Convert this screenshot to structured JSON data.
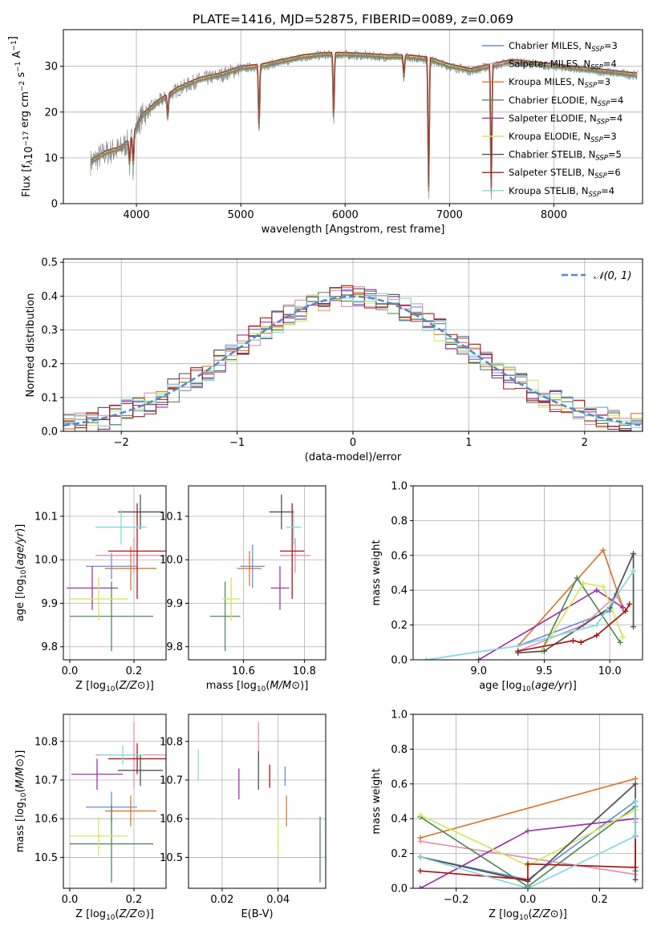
{
  "figure": {
    "title": "PLATE=1416, MJD=52875, FIBERID=0089, z=0.069"
  },
  "colors": {
    "chabrier_miles": "#6a8fd6",
    "salpeter_miles": "#e38fb5",
    "kroupa_miles": "#d9782f",
    "chabrier_elodie": "#55885b",
    "salpeter_elodie": "#9a35a8",
    "kroupa_elodie": "#d2e85a",
    "chabrier_stelib": "#505050",
    "salpeter_stelib": "#a81818",
    "kroupa_stelib": "#86d7dc",
    "data_spectrum": "#808080",
    "normal_curve": "#5588cc"
  },
  "chart_data": [
    {
      "id": "spectrum",
      "type": "line",
      "title": "PLATE=1416, MJD=52875, FIBERID=0089, z=0.069",
      "xlabel": "wavelength [Angstrom, rest frame]",
      "ylabel": "Flux [f_λ 10^-17 erg cm^-2 s^-1 A^-1]",
      "xlim": [
        3300,
        8850
      ],
      "ylim": [
        0,
        38
      ],
      "xticks": [
        4000,
        5000,
        6000,
        7000,
        8000
      ],
      "yticks": [
        0,
        10,
        20,
        30
      ],
      "legend_position": "top-right",
      "legend": [
        {
          "name": "Chabrier MILES, N",
          "sub": "SSP",
          "eq": "=3",
          "color_key": "chabrier_miles"
        },
        {
          "name": "Salpeter MILES, N",
          "sub": "SSP",
          "eq": "=4",
          "color_key": "salpeter_miles"
        },
        {
          "name": "Kroupa MILES, N",
          "sub": "SSP",
          "eq": "=3",
          "color_key": "kroupa_miles"
        },
        {
          "name": "Chabrier ELODIE, N",
          "sub": "SSP",
          "eq": "=4",
          "color_key": "chabrier_elodie"
        },
        {
          "name": "Salpeter ELODIE, N",
          "sub": "SSP",
          "eq": "=4",
          "color_key": "salpeter_elodie"
        },
        {
          "name": "Kroupa ELODIE, N",
          "sub": "SSP",
          "eq": "=3",
          "color_key": "kroupa_elodie"
        },
        {
          "name": "Chabrier STELIB, N",
          "sub": "SSP",
          "eq": "=5",
          "color_key": "chabrier_stelib"
        },
        {
          "name": "Salpeter STELIB, N",
          "sub": "SSP",
          "eq": "=6",
          "color_key": "salpeter_stelib"
        },
        {
          "name": "Kroupa STELIB, N",
          "sub": "SSP",
          "eq": "=4",
          "color_key": "kroupa_stelib"
        }
      ],
      "continuum": [
        [
          3560,
          9
        ],
        [
          3700,
          11
        ],
        [
          3850,
          12
        ],
        [
          3950,
          14
        ],
        [
          4050,
          19
        ],
        [
          4200,
          22
        ],
        [
          4400,
          25
        ],
        [
          4600,
          27
        ],
        [
          4800,
          28
        ],
        [
          5000,
          29.5
        ],
        [
          5200,
          30
        ],
        [
          5400,
          31
        ],
        [
          5600,
          32
        ],
        [
          5800,
          32.5
        ],
        [
          6000,
          32.5
        ],
        [
          6200,
          32.3
        ],
        [
          6400,
          32
        ],
        [
          6600,
          32
        ],
        [
          6800,
          31.5
        ],
        [
          7000,
          30
        ],
        [
          7200,
          29
        ],
        [
          7400,
          30
        ],
        [
          7600,
          31
        ],
        [
          7800,
          30.5
        ],
        [
          8000,
          30
        ],
        [
          8200,
          29.5
        ],
        [
          8400,
          29
        ],
        [
          8600,
          28.5
        ],
        [
          8800,
          28
        ]
      ],
      "absorption_features": [
        [
          3934,
          8
        ],
        [
          3969,
          8
        ],
        [
          4300,
          18
        ],
        [
          5175,
          15
        ],
        [
          5890,
          17
        ],
        [
          6563,
          27
        ],
        [
          6800,
          0
        ],
        [
          7400,
          0
        ]
      ]
    },
    {
      "id": "residuals",
      "type": "histogram",
      "xlabel": "(data-model)/error",
      "ylabel": "Normed distribution",
      "xlim": [
        -2.5,
        2.5
      ],
      "ylim": [
        0,
        0.51
      ],
      "xticks": [
        -2,
        -1,
        0,
        1,
        2
      ],
      "yticks": [
        0.0,
        0.1,
        0.2,
        0.3,
        0.4,
        0.5
      ],
      "legend_position": "top-right",
      "legend_label": "𝒩(0, 1)",
      "bin_width": 0.1,
      "reference": {
        "type": "normal",
        "mean": 0,
        "sigma": 1
      }
    },
    {
      "id": "age_vs_Z",
      "type": "errorbar",
      "xlabel": "Z [log10(Z/Z⊙)]",
      "ylabel": "age [log10(age/yr)]",
      "xlim": [
        -0.02,
        0.3
      ],
      "ylim": [
        9.77,
        10.17
      ],
      "xticks": [
        0.0,
        0.2
      ],
      "yticks": [
        9.8,
        9.9,
        10.0,
        10.1
      ],
      "points": [
        {
          "series": "chabrier_miles",
          "x": 0.13,
          "xerr": 0.08,
          "y": 9.985,
          "yerr": 0.03
        },
        {
          "series": "salpeter_miles",
          "x": 0.2,
          "xerr": 0.12,
          "y": 10.01,
          "yerr": 0.04
        },
        {
          "series": "kroupa_miles",
          "x": 0.19,
          "xerr": 0.08,
          "y": 9.98,
          "yerr": 0.05
        },
        {
          "series": "chabrier_elodie",
          "x": 0.13,
          "xerr": 0.13,
          "y": 9.87,
          "yerr": 0.08
        },
        {
          "series": "salpeter_elodie",
          "x": 0.07,
          "xerr": 0.08,
          "y": 9.935,
          "yerr": 0.05
        },
        {
          "series": "kroupa_elodie",
          "x": 0.09,
          "xerr": 0.09,
          "y": 9.91,
          "yerr": 0.05
        },
        {
          "series": "chabrier_stelib",
          "x": 0.22,
          "xerr": 0.07,
          "y": 10.11,
          "yerr": 0.04
        },
        {
          "series": "salpeter_stelib",
          "x": 0.21,
          "xerr": 0.09,
          "y": 10.02,
          "yerr": 0.11
        },
        {
          "series": "kroupa_stelib",
          "x": 0.16,
          "xerr": 0.08,
          "y": 10.075,
          "yerr": 0.04
        }
      ]
    },
    {
      "id": "age_vs_mass",
      "type": "errorbar",
      "xlabel": "mass [log10(M/M⊙)]",
      "ylabel": "",
      "xlim": [
        10.42,
        10.87
      ],
      "ylim": [
        9.77,
        10.17
      ],
      "xticks": [
        10.6,
        10.8
      ],
      "yticks": [
        9.8,
        9.9,
        10.0,
        10.1
      ],
      "points": [
        {
          "series": "chabrier_miles",
          "x": 10.63,
          "xerr": 0.04,
          "y": 9.985,
          "yerr": 0.05
        },
        {
          "series": "salpeter_miles",
          "x": 10.77,
          "xerr": 0.05,
          "y": 10.01,
          "yerr": 0.04
        },
        {
          "series": "kroupa_miles",
          "x": 10.62,
          "xerr": 0.04,
          "y": 9.98,
          "yerr": 0.04
        },
        {
          "series": "chabrier_elodie",
          "x": 10.54,
          "xerr": 0.05,
          "y": 9.87,
          "yerr": 0.08
        },
        {
          "series": "salpeter_elodie",
          "x": 10.72,
          "xerr": 0.03,
          "y": 9.935,
          "yerr": 0.05
        },
        {
          "series": "kroupa_elodie",
          "x": 10.56,
          "xerr": 0.03,
          "y": 9.91,
          "yerr": 0.05
        },
        {
          "series": "chabrier_stelib",
          "x": 10.725,
          "xerr": 0.04,
          "y": 10.11,
          "yerr": 0.04
        },
        {
          "series": "salpeter_stelib",
          "x": 10.76,
          "xerr": 0.04,
          "y": 10.02,
          "yerr": 0.11
        },
        {
          "series": "kroupa_stelib",
          "x": 10.765,
          "xerr": 0.025,
          "y": 10.075,
          "yerr": 0.04
        }
      ]
    },
    {
      "id": "mass_weight_vs_age",
      "type": "line",
      "xlabel": "age [log10(age/yr)]",
      "ylabel": "mass weight",
      "xlim": [
        8.5,
        10.25
      ],
      "ylim": [
        0,
        1
      ],
      "xticks": [
        9.0,
        9.5,
        10.0
      ],
      "yticks": [
        0.0,
        0.2,
        0.4,
        0.6,
        0.8,
        1.0
      ],
      "series": [
        {
          "key": "chabrier_miles",
          "points": [
            [
              9.3,
              0.08
            ],
            [
              10.0,
              0.28
            ],
            [
              10.05,
              0.38
            ]
          ]
        },
        {
          "key": "salpeter_miles",
          "points": [
            [
              9.3,
              0.05
            ],
            [
              9.8,
              0.2
            ],
            [
              10.05,
              0.37
            ],
            [
              10.1,
              0.3
            ]
          ]
        },
        {
          "key": "kroupa_miles",
          "points": [
            [
              9.3,
              0.08
            ],
            [
              9.95,
              0.63
            ],
            [
              10.1,
              0.3
            ]
          ]
        },
        {
          "key": "chabrier_elodie",
          "points": [
            [
              9.48,
              0.05
            ],
            [
              9.75,
              0.47
            ],
            [
              10.08,
              0.1
            ]
          ]
        },
        {
          "key": "salpeter_elodie",
          "points": [
            [
              9.0,
              0.0
            ],
            [
              9.9,
              0.4
            ],
            [
              10.1,
              0.3
            ]
          ]
        },
        {
          "key": "kroupa_elodie",
          "points": [
            [
              9.48,
              0.05
            ],
            [
              9.8,
              0.44
            ],
            [
              9.95,
              0.42
            ],
            [
              10.1,
              0.13
            ]
          ]
        },
        {
          "key": "chabrier_stelib",
          "points": [
            [
              9.3,
              0.04
            ],
            [
              9.5,
              0.05
            ],
            [
              10.0,
              0.3
            ],
            [
              10.18,
              0.61
            ],
            [
              10.18,
              0.19
            ]
          ]
        },
        {
          "key": "salpeter_stelib",
          "points": [
            [
              9.3,
              0.05
            ],
            [
              9.72,
              0.11
            ],
            [
              9.78,
              0.1
            ],
            [
              9.9,
              0.14
            ],
            [
              10.12,
              0.28
            ],
            [
              10.15,
              0.32
            ]
          ]
        },
        {
          "key": "kroupa_stelib",
          "points": [
            [
              8.6,
              0.0
            ],
            [
              9.3,
              0.08
            ],
            [
              9.9,
              0.2
            ],
            [
              10.18,
              0.51
            ]
          ]
        }
      ]
    },
    {
      "id": "mass_vs_Z",
      "type": "errorbar",
      "xlabel": "Z [log10(Z/Z⊙)]",
      "ylabel": "mass [log10(M/M⊙)]",
      "xlim": [
        -0.02,
        0.3
      ],
      "ylim": [
        10.42,
        10.87
      ],
      "xticks": [
        0.0,
        0.2
      ],
      "yticks": [
        10.5,
        10.6,
        10.7,
        10.8
      ],
      "points": [
        {
          "series": "chabrier_miles",
          "x": 0.13,
          "xerr": 0.08,
          "y": 10.63,
          "yerr": 0.04
        },
        {
          "series": "salpeter_miles",
          "x": 0.2,
          "xerr": 0.12,
          "y": 10.765,
          "yerr": 0.085
        },
        {
          "series": "kroupa_miles",
          "x": 0.19,
          "xerr": 0.08,
          "y": 10.62,
          "yerr": 0.04
        },
        {
          "series": "chabrier_elodie",
          "x": 0.13,
          "xerr": 0.13,
          "y": 10.535,
          "yerr": 0.1
        },
        {
          "series": "salpeter_elodie",
          "x": 0.085,
          "xerr": 0.08,
          "y": 10.715,
          "yerr": 0.04
        },
        {
          "series": "kroupa_elodie",
          "x": 0.09,
          "xerr": 0.09,
          "y": 10.555,
          "yerr": 0.05
        },
        {
          "series": "chabrier_stelib",
          "x": 0.22,
          "xerr": 0.07,
          "y": 10.725,
          "yerr": 0.04
        },
        {
          "series": "salpeter_stelib",
          "x": 0.21,
          "xerr": 0.09,
          "y": 10.755,
          "yerr": 0.04
        },
        {
          "series": "kroupa_stelib",
          "x": 0.165,
          "xerr": 0.07,
          "y": 10.765,
          "yerr": 0.025
        }
      ]
    },
    {
      "id": "mass_vs_ebv",
      "type": "errorbar",
      "xlabel": "E(B-V)",
      "ylabel": "",
      "xlim": [
        0.008,
        0.057
      ],
      "ylim": [
        10.42,
        10.87
      ],
      "xticks": [
        0.02,
        0.04
      ],
      "yticks": [
        10.5,
        10.6,
        10.7,
        10.8
      ],
      "points": [
        {
          "series": "chabrier_miles",
          "x": 0.0425,
          "xerr": 0,
          "y": 10.71,
          "yerr": 0.025
        },
        {
          "series": "salpeter_miles",
          "x": 0.033,
          "xerr": 0,
          "y": 10.8,
          "yerr": 0.05
        },
        {
          "series": "kroupa_miles",
          "x": 0.043,
          "xerr": 0,
          "y": 10.62,
          "yerr": 0.04
        },
        {
          "series": "chabrier_elodie",
          "x": 0.055,
          "xerr": 0,
          "y": 10.52,
          "yerr": 0.085
        },
        {
          "series": "salpeter_elodie",
          "x": 0.026,
          "xerr": 0,
          "y": 10.69,
          "yerr": 0.04
        },
        {
          "series": "kroupa_elodie",
          "x": 0.04,
          "xerr": 0,
          "y": 10.555,
          "yerr": 0.05
        },
        {
          "series": "chabrier_stelib",
          "x": 0.033,
          "xerr": 0,
          "y": 10.725,
          "yerr": 0.05
        },
        {
          "series": "salpeter_stelib",
          "x": 0.037,
          "xerr": 0,
          "y": 10.71,
          "yerr": 0.03
        },
        {
          "series": "kroupa_stelib",
          "x": 0.0115,
          "xerr": 0,
          "y": 10.74,
          "yerr": 0.04
        }
      ]
    },
    {
      "id": "mass_weight_vs_Z",
      "type": "line",
      "xlabel": "Z [log10(Z/Z⊙)]",
      "ylabel": "mass weight",
      "xlim": [
        -0.32,
        0.32
      ],
      "ylim": [
        0,
        1
      ],
      "xticks": [
        -0.2,
        0.0,
        0.2
      ],
      "yticks": [
        0.0,
        0.2,
        0.4,
        0.6,
        0.8,
        1.0
      ],
      "series": [
        {
          "key": "chabrier_miles",
          "points": [
            [
              -0.3,
              0.18
            ],
            [
              0.0,
              0.05
            ],
            [
              0.3,
              0.5
            ],
            [
              0.3,
              0.3
            ]
          ]
        },
        {
          "key": "salpeter_miles",
          "points": [
            [
              -0.3,
              0.27
            ],
            [
              0.3,
              0.08
            ],
            [
              0.3,
              0.38
            ]
          ]
        },
        {
          "key": "kroupa_miles",
          "points": [
            [
              -0.3,
              0.29
            ],
            [
              0.3,
              0.63
            ]
          ]
        },
        {
          "key": "chabrier_elodie",
          "points": [
            [
              -0.3,
              0.41
            ],
            [
              0.0,
              0.01
            ],
            [
              0.3,
              0.47
            ],
            [
              0.3,
              0.1
            ]
          ]
        },
        {
          "key": "salpeter_elodie",
          "points": [
            [
              -0.3,
              0.0
            ],
            [
              0.0,
              0.33
            ],
            [
              0.3,
              0.4
            ],
            [
              0.3,
              0.3
            ]
          ]
        },
        {
          "key": "kroupa_elodie",
          "points": [
            [
              -0.3,
              0.42
            ],
            [
              0.0,
              0.13
            ],
            [
              0.3,
              0.45
            ]
          ]
        },
        {
          "key": "chabrier_stelib",
          "points": [
            [
              -0.3,
              0.18
            ],
            [
              0.0,
              0.04
            ],
            [
              0.3,
              0.6
            ],
            [
              0.3,
              0.05
            ]
          ]
        },
        {
          "key": "salpeter_stelib",
          "points": [
            [
              -0.3,
              0.1
            ],
            [
              0.0,
              0.05
            ],
            [
              0.0,
              0.14
            ],
            [
              0.3,
              0.12
            ],
            [
              0.3,
              0.3
            ]
          ]
        },
        {
          "key": "kroupa_stelib",
          "points": [
            [
              -0.3,
              0.18
            ],
            [
              0.0,
              0.0
            ],
            [
              0.3,
              0.3
            ],
            [
              0.3,
              0.5
            ]
          ]
        }
      ]
    }
  ]
}
